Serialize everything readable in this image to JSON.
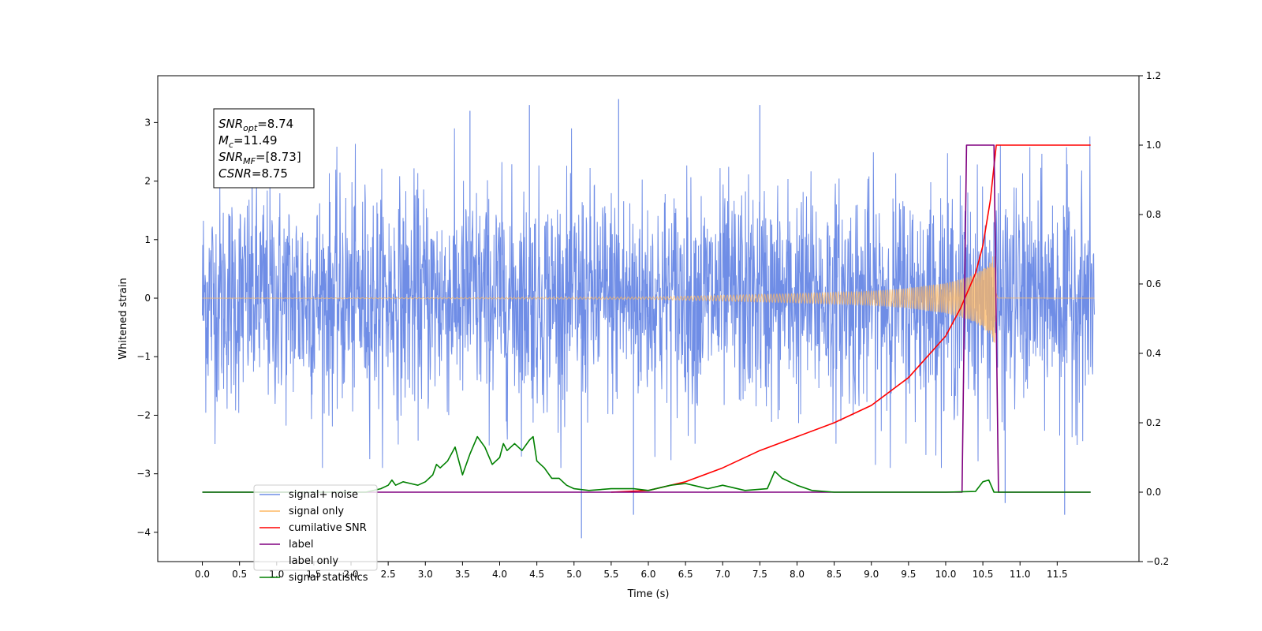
{
  "chart_data": {
    "type": "line",
    "xlabel": "Time (s)",
    "ylabel": "Whitened strain",
    "xlim": [
      -0.6,
      12.6
    ],
    "ylim_left": [
      -4.5,
      3.8
    ],
    "ylim_right": [
      -0.2,
      1.2
    ],
    "x_ticks": [
      0.0,
      0.5,
      1.0,
      1.5,
      2.0,
      2.5,
      3.0,
      3.5,
      4.0,
      4.5,
      5.0,
      5.5,
      6.0,
      6.5,
      7.0,
      7.5,
      8.0,
      8.5,
      9.0,
      9.5,
      10.0,
      10.5,
      11.0,
      11.5
    ],
    "x_tick_labels": [
      "0.0",
      "0.5",
      "1.0",
      "1.5",
      "2.0",
      "2.5",
      "3.0",
      "3.5",
      "4.0",
      "4.5",
      "5.0",
      "5.5",
      "6.0",
      "6.5",
      "7.0",
      "7.5",
      "8.0",
      "8.5",
      "9.0",
      "9.5",
      "10.0",
      "10.5",
      "11.0",
      "11.5"
    ],
    "y_left_ticks": [
      -4,
      -3,
      -2,
      -1,
      0,
      1,
      2,
      3
    ],
    "y_left_tick_labels": [
      "−4",
      "−3",
      "−2",
      "−1",
      "0",
      "1",
      "2",
      "3"
    ],
    "y_right_ticks": [
      -0.2,
      0.0,
      0.2,
      0.4,
      0.6,
      0.8,
      1.0,
      1.2
    ],
    "y_right_tick_labels": [
      "−0.2",
      "0.0",
      "0.2",
      "0.4",
      "0.6",
      "0.8",
      "1.0",
      "1.2"
    ],
    "annotation": [
      {
        "base": "SNR",
        "sub": "opt",
        "value": "=8.74"
      },
      {
        "base": "M",
        "sub": "c",
        "value": "=11.49"
      },
      {
        "base": "SNR",
        "sub": "MF",
        "value": "=[8.73]"
      },
      {
        "base": "CSNR",
        "sub": "",
        "value": "=8.75"
      }
    ],
    "legend_position": "lower-left",
    "series": [
      {
        "name": "signal+ noise",
        "axis": "left",
        "color": "#6f8de6",
        "description": "whitened noise, ~unit variance, spans about -4.1 to 3.4 over 0-12 s",
        "t_range": [
          0.0,
          12.0
        ],
        "noise_sigma": 1.0,
        "spikes": [
          [
            5.1,
            -4.1
          ],
          [
            5.6,
            3.4
          ],
          [
            4.4,
            3.3
          ],
          [
            7.5,
            3.3
          ],
          [
            11.6,
            -3.7
          ],
          [
            10.8,
            -3.5
          ],
          [
            5.8,
            -3.7
          ],
          [
            3.6,
            3.2
          ]
        ]
      },
      {
        "name": "signal only",
        "axis": "left",
        "color": "#fdb863",
        "description": "chirp waveform growing toward merger near 10.68 s",
        "t_range": [
          0.0,
          12.0
        ],
        "merger_time": 10.68,
        "envelope": {
          "t": [
            0,
            6.0,
            8.0,
            9.0,
            9.5,
            10.0,
            10.3,
            10.5,
            10.6,
            10.68,
            10.7,
            12.0
          ],
          "a": [
            0.0,
            0.02,
            0.08,
            0.12,
            0.17,
            0.26,
            0.36,
            0.5,
            0.62,
            0.85,
            0.02,
            0.0
          ]
        }
      },
      {
        "name": "cumilative SNR",
        "axis": "right",
        "color": "#ff0000",
        "x": [
          5.5,
          6.0,
          6.5,
          7.0,
          7.5,
          8.0,
          8.5,
          9.0,
          9.5,
          10.0,
          10.2,
          10.4,
          10.5,
          10.6,
          10.68,
          10.7,
          11.0,
          11.5,
          11.95
        ],
        "y": [
          0.0,
          0.005,
          0.03,
          0.07,
          0.12,
          0.16,
          0.2,
          0.25,
          0.33,
          0.45,
          0.53,
          0.63,
          0.71,
          0.84,
          1.0,
          1.0,
          1.0,
          1.0,
          1.0
        ]
      },
      {
        "name": "label",
        "axis": "right",
        "color": "#800080",
        "x": [
          0.0,
          10.22,
          10.28,
          10.65,
          10.71,
          11.95
        ],
        "y": [
          0.0,
          0.0,
          1.0,
          1.0,
          0.0,
          0.0
        ]
      },
      {
        "name": "label only",
        "axis": "right",
        "color": "#ffffff",
        "x": [],
        "y": []
      },
      {
        "name": "signal statistics",
        "axis": "right",
        "color": "#008000",
        "x": [
          0.0,
          2.2,
          2.4,
          2.5,
          2.55,
          2.6,
          2.7,
          2.8,
          2.9,
          3.0,
          3.1,
          3.15,
          3.2,
          3.3,
          3.4,
          3.5,
          3.6,
          3.7,
          3.8,
          3.9,
          4.0,
          4.05,
          4.1,
          4.2,
          4.3,
          4.4,
          4.45,
          4.5,
          4.6,
          4.7,
          4.8,
          4.9,
          5.0,
          5.2,
          5.5,
          5.8,
          6.0,
          6.3,
          6.5,
          6.8,
          7.0,
          7.3,
          7.6,
          7.7,
          7.8,
          8.0,
          8.2,
          8.5,
          10.0,
          10.4,
          10.5,
          10.58,
          10.65,
          11.95
        ],
        "y": [
          0.0,
          0.0,
          0.01,
          0.02,
          0.035,
          0.02,
          0.03,
          0.025,
          0.02,
          0.03,
          0.05,
          0.08,
          0.07,
          0.09,
          0.13,
          0.05,
          0.11,
          0.16,
          0.13,
          0.08,
          0.1,
          0.14,
          0.12,
          0.14,
          0.12,
          0.15,
          0.16,
          0.09,
          0.07,
          0.04,
          0.04,
          0.02,
          0.01,
          0.005,
          0.01,
          0.01,
          0.005,
          0.02,
          0.025,
          0.01,
          0.02,
          0.005,
          0.01,
          0.06,
          0.04,
          0.02,
          0.005,
          0.0,
          0.0,
          0.002,
          0.03,
          0.035,
          0.0,
          0.0
        ]
      }
    ]
  }
}
